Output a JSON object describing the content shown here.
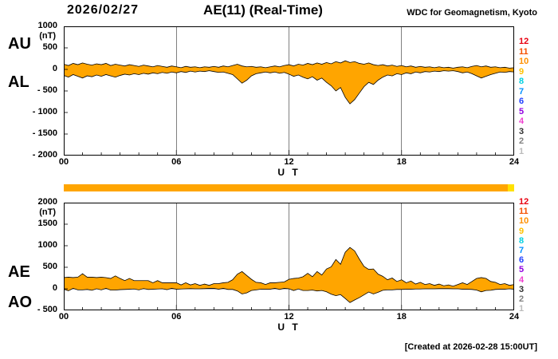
{
  "header": {
    "date": "2026/02/27",
    "title": "AE(11) (Real-Time)",
    "credit": "WDC for Geomagnetism, Kyoto"
  },
  "footer": {
    "created": "[Created at 2026-02-28 15:00UT]"
  },
  "colors": {
    "area_fill": "#ffa500",
    "outline": "#000000",
    "background": "#ffffff"
  },
  "status_bar": {
    "segments": [
      {
        "color": "#ffa500",
        "fraction": 0.985
      },
      {
        "color": "#ffe100",
        "fraction": 0.015
      }
    ]
  },
  "stations": [
    {
      "label": "12",
      "color": "#e8000f"
    },
    {
      "label": "11",
      "color": "#f55000"
    },
    {
      "label": "10",
      "color": "#ff9000"
    },
    {
      "label": "9",
      "color": "#ffc000"
    },
    {
      "label": "8",
      "color": "#00d0e0"
    },
    {
      "label": "7",
      "color": "#0090ff"
    },
    {
      "label": "6",
      "color": "#2040ff"
    },
    {
      "label": "5",
      "color": "#9000e0"
    },
    {
      "label": "4",
      "color": "#f040d0"
    },
    {
      "label": "3",
      "color": "#303030"
    },
    {
      "label": "2",
      "color": "#808080"
    },
    {
      "label": "1",
      "color": "#bbbbbb"
    }
  ],
  "chart_data": [
    {
      "type": "area",
      "title": "AU / AL auroral electrojet indices",
      "xlabel": "U T",
      "ylabel_unit": "(nT)",
      "xlim": [
        0,
        24
      ],
      "ylim": [
        -2000,
        1000
      ],
      "x_gridlines": [
        6,
        12,
        18
      ],
      "xticks": [
        "00",
        "06",
        "12",
        "18",
        "24"
      ],
      "yticks": [
        {
          "value": 1000,
          "label": "1000"
        },
        {
          "value": 500,
          "label": "500"
        },
        {
          "value": 0,
          "label": "0"
        },
        {
          "value": -500,
          "label": "- 500"
        },
        {
          "value": -1000,
          "label": "- 1000"
        },
        {
          "value": -1500,
          "label": "- 1500"
        },
        {
          "value": -2000,
          "label": "- 2000"
        }
      ],
      "left_labels": [
        "AU",
        "AL"
      ],
      "x": {
        "start": 0,
        "step": 0.25,
        "unit": "hour"
      },
      "series": [
        {
          "name": "AU",
          "values": [
            120,
            90,
            140,
            110,
            150,
            120,
            100,
            130,
            110,
            140,
            90,
            120,
            100,
            80,
            110,
            90,
            70,
            100,
            80,
            60,
            90,
            70,
            50,
            80,
            60,
            40,
            70,
            50,
            60,
            40,
            60,
            50,
            70,
            50,
            80,
            60,
            90,
            120,
            80,
            60,
            70,
            50,
            60,
            40,
            60,
            80,
            60,
            90,
            110,
            80,
            120,
            100,
            140,
            110,
            150,
            120,
            160,
            130,
            180,
            150,
            200,
            160,
            180,
            140,
            120,
            150,
            110,
            90,
            110,
            80,
            100,
            70,
            90,
            60,
            80,
            50,
            70,
            50,
            60,
            40,
            60,
            40,
            50,
            30,
            50,
            60,
            40,
            70,
            90,
            60,
            80,
            50,
            60,
            40,
            50,
            30,
            40
          ]
        },
        {
          "name": "AL",
          "values": [
            -140,
            -180,
            -120,
            -160,
            -200,
            -150,
            -170,
            -130,
            -160,
            -120,
            -150,
            -180,
            -140,
            -110,
            -130,
            -100,
            -120,
            -90,
            -110,
            -80,
            -100,
            -70,
            -90,
            -60,
            -80,
            -50,
            -70,
            -40,
            -60,
            -40,
            -50,
            -30,
            -50,
            -70,
            -60,
            -90,
            -120,
            -220,
            -320,
            -250,
            -150,
            -100,
            -80,
            -60,
            -80,
            -60,
            -90,
            -70,
            -110,
            -160,
            -130,
            -180,
            -220,
            -170,
            -250,
            -200,
            -300,
            -380,
            -500,
            -420,
            -650,
            -800,
            -700,
            -550,
            -400,
            -300,
            -350,
            -250,
            -180,
            -130,
            -150,
            -100,
            -120,
            -80,
            -100,
            -60,
            -80,
            -50,
            -60,
            -40,
            -50,
            -30,
            -40,
            -30,
            -50,
            -80,
            -60,
            -100,
            -150,
            -200,
            -160,
            -120,
            -90,
            -60,
            -70,
            -50,
            -60
          ]
        }
      ]
    },
    {
      "type": "area",
      "title": "AE / AO auroral electrojet indices",
      "xlabel": "U T",
      "ylabel_unit": "(nT)",
      "xlim": [
        0,
        24
      ],
      "ylim": [
        -500,
        2000
      ],
      "x_gridlines": [
        6,
        12,
        18
      ],
      "xticks": [
        "00",
        "06",
        "12",
        "18",
        "24"
      ],
      "yticks": [
        {
          "value": 2000,
          "label": "2000"
        },
        {
          "value": 1500,
          "label": "1500"
        },
        {
          "value": 1000,
          "label": "1000"
        },
        {
          "value": 500,
          "label": "500"
        },
        {
          "value": 0,
          "label": "0"
        },
        {
          "value": -500,
          "label": "- 500"
        }
      ],
      "left_labels": [
        "AE",
        "AO"
      ],
      "x": {
        "start": 0,
        "step": 0.25,
        "unit": "hour"
      },
      "series": [
        {
          "name": "AE",
          "values": [
            260,
            270,
            260,
            270,
            350,
            270,
            270,
            260,
            270,
            260,
            240,
            300,
            240,
            190,
            240,
            190,
            190,
            190,
            190,
            140,
            190,
            140,
            140,
            140,
            140,
            90,
            140,
            90,
            120,
            80,
            110,
            80,
            120,
            120,
            140,
            150,
            210,
            340,
            400,
            310,
            220,
            150,
            140,
            100,
            140,
            140,
            150,
            160,
            220,
            240,
            250,
            280,
            360,
            280,
            400,
            320,
            460,
            510,
            680,
            570,
            850,
            960,
            880,
            690,
            520,
            450,
            460,
            340,
            290,
            210,
            250,
            170,
            210,
            140,
            180,
            110,
            150,
            100,
            120,
            80,
            110,
            70,
            90,
            60,
            100,
            140,
            100,
            170,
            240,
            260,
            240,
            170,
            150,
            100,
            120,
            80,
            100
          ]
        },
        {
          "name": "AO",
          "values": [
            -10,
            -45,
            10,
            -25,
            -25,
            -15,
            -35,
            0,
            -25,
            10,
            -30,
            -30,
            -20,
            -15,
            -10,
            -5,
            -25,
            5,
            -15,
            -10,
            -5,
            0,
            -20,
            10,
            -10,
            -5,
            0,
            5,
            0,
            0,
            5,
            10,
            10,
            -10,
            10,
            -15,
            -15,
            -50,
            -120,
            -95,
            -40,
            -25,
            -10,
            -10,
            -10,
            10,
            -15,
            10,
            0,
            -40,
            -5,
            -40,
            -40,
            -30,
            -50,
            -40,
            -70,
            -125,
            -160,
            -135,
            -225,
            -320,
            -260,
            -205,
            -140,
            -75,
            -120,
            -80,
            -35,
            -25,
            -25,
            -15,
            -15,
            -10,
            -10,
            -5,
            -5,
            0,
            0,
            0,
            5,
            5,
            5,
            0,
            0,
            -10,
            -10,
            -15,
            -30,
            -70,
            -40,
            -35,
            -15,
            -10,
            -10,
            0,
            -10
          ]
        }
      ]
    }
  ]
}
